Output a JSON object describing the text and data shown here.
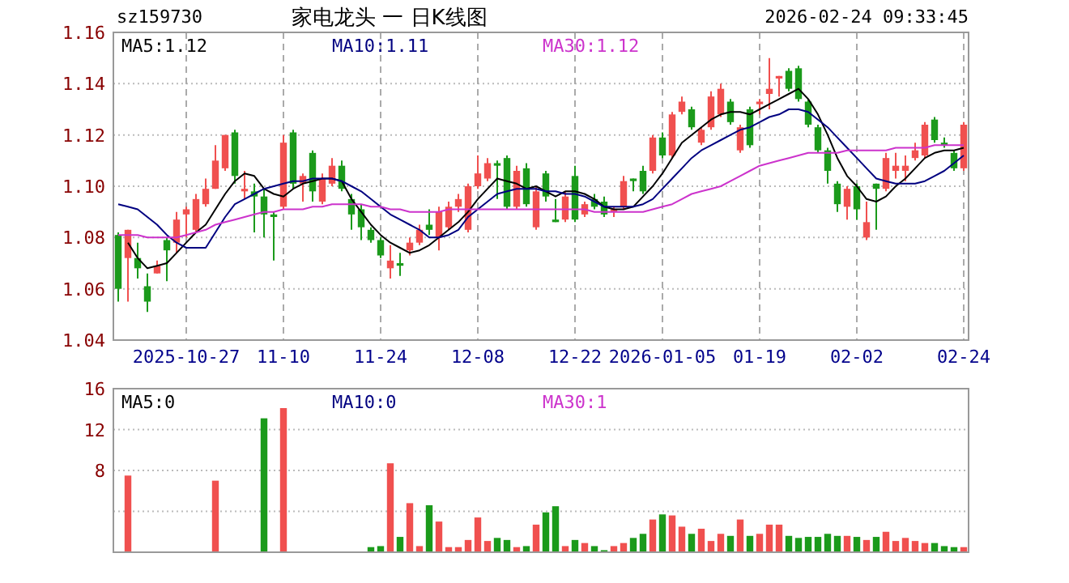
{
  "chart_data": [
    {
      "type": "candlestick",
      "title": "家电龙头 一 日K线图",
      "subtitle": "sz159730",
      "annotations": [
        "2026-02-24 09:33:45"
      ],
      "categories": [
        null,
        null,
        null,
        null,
        null,
        null,
        null,
        "2025-10-27",
        null,
        null,
        null,
        null,
        null,
        null,
        null,
        null,
        null,
        "11-10",
        null,
        null,
        null,
        null,
        null,
        null,
        null,
        null,
        null,
        "11-24",
        null,
        null,
        null,
        null,
        null,
        null,
        null,
        null,
        null,
        "12-08",
        null,
        null,
        null,
        null,
        null,
        null,
        null,
        null,
        null,
        "12-22",
        null,
        null,
        null,
        null,
        null,
        null,
        null,
        null,
        "2026-01-05",
        null,
        null,
        null,
        null,
        null,
        null,
        null,
        null,
        null,
        "01-19",
        null,
        null,
        null,
        null,
        null,
        null,
        null,
        null,
        null,
        "02-02",
        null,
        null,
        null,
        null,
        null,
        null,
        null,
        null,
        null,
        null,
        "02-24"
      ],
      "ohlc": [
        [
          1.081,
          1.082,
          1.055,
          1.06
        ],
        [
          1.072,
          1.083,
          1.055,
          1.083
        ],
        [
          1.072,
          1.078,
          1.064,
          1.068
        ],
        [
          1.061,
          1.066,
          1.051,
          1.055
        ],
        [
          1.066,
          1.071,
          1.066,
          1.069
        ],
        [
          1.079,
          1.08,
          1.063,
          1.075
        ],
        [
          1.078,
          1.09,
          1.074,
          1.087
        ],
        [
          1.089,
          1.092,
          1.08,
          1.091
        ],
        [
          1.083,
          1.097,
          1.082,
          1.095
        ],
        [
          1.093,
          1.103,
          1.092,
          1.099
        ],
        [
          1.099,
          1.116,
          1.099,
          1.11
        ],
        [
          1.107,
          1.12,
          1.106,
          1.12
        ],
        [
          1.121,
          1.122,
          1.101,
          1.104
        ],
        [
          1.098,
          1.106,
          1.095,
          1.099
        ],
        [
          1.098,
          1.101,
          1.082,
          1.096
        ],
        [
          1.096,
          1.099,
          1.08,
          1.089
        ],
        [
          1.089,
          1.09,
          1.071,
          1.088
        ],
        [
          1.092,
          1.12,
          1.091,
          1.117
        ],
        [
          1.121,
          1.122,
          1.099,
          1.101
        ],
        [
          1.101,
          1.105,
          1.094,
          1.104
        ],
        [
          1.113,
          1.114,
          1.094,
          1.098
        ],
        [
          1.094,
          1.105,
          1.093,
          1.103
        ],
        [
          1.101,
          1.111,
          1.1,
          1.108
        ],
        [
          1.108,
          1.11,
          1.098,
          1.099
        ],
        [
          1.095,
          1.097,
          1.083,
          1.089
        ],
        [
          1.091,
          1.093,
          1.079,
          1.084
        ],
        [
          1.083,
          1.084,
          1.078,
          1.079
        ],
        [
          1.079,
          1.08,
          1.072,
          1.073
        ],
        [
          1.068,
          1.077,
          1.064,
          1.071
        ],
        [
          1.07,
          1.074,
          1.065,
          1.069
        ],
        [
          1.075,
          1.08,
          1.073,
          1.078
        ],
        [
          1.078,
          1.085,
          1.077,
          1.083
        ],
        [
          1.085,
          1.091,
          1.081,
          1.083
        ],
        [
          1.08,
          1.092,
          1.075,
          1.09
        ],
        [
          1.084,
          1.094,
          1.083,
          1.092
        ],
        [
          1.092,
          1.097,
          1.09,
          1.095
        ],
        [
          1.083,
          1.101,
          1.082,
          1.1
        ],
        [
          1.1,
          1.112,
          1.099,
          1.105
        ],
        [
          1.103,
          1.111,
          1.102,
          1.109
        ],
        [
          1.109,
          1.11,
          1.095,
          1.108
        ],
        [
          1.111,
          1.112,
          1.091,
          1.092
        ],
        [
          1.092,
          1.108,
          1.091,
          1.106
        ],
        [
          1.107,
          1.109,
          1.092,
          1.093
        ],
        [
          1.084,
          1.1,
          1.083,
          1.098
        ],
        [
          1.105,
          1.106,
          1.094,
          1.096
        ],
        [
          1.087,
          1.095,
          1.086,
          1.086
        ],
        [
          1.087,
          1.098,
          1.086,
          1.096
        ],
        [
          1.104,
          1.108,
          1.086,
          1.087
        ],
        [
          1.089,
          1.094,
          1.088,
          1.093
        ],
        [
          1.095,
          1.097,
          1.091,
          1.092
        ],
        [
          1.094,
          1.096,
          1.088,
          1.089
        ],
        [
          1.09,
          1.092,
          1.088,
          1.091
        ],
        [
          1.092,
          1.104,
          1.091,
          1.102
        ],
        [
          1.103,
          1.103,
          1.098,
          1.102
        ],
        [
          1.106,
          1.108,
          1.097,
          1.098
        ],
        [
          1.106,
          1.12,
          1.105,
          1.119
        ],
        [
          1.119,
          1.121,
          1.111,
          1.112
        ],
        [
          1.112,
          1.129,
          1.111,
          1.128
        ],
        [
          1.129,
          1.135,
          1.128,
          1.133
        ],
        [
          1.13,
          1.131,
          1.122,
          1.123
        ],
        [
          1.117,
          1.123,
          1.116,
          1.122
        ],
        [
          1.123,
          1.137,
          1.122,
          1.135
        ],
        [
          1.128,
          1.14,
          1.127,
          1.138
        ],
        [
          1.133,
          1.134,
          1.124,
          1.125
        ],
        [
          1.114,
          1.124,
          1.113,
          1.123
        ],
        [
          1.13,
          1.131,
          1.115,
          1.116
        ],
        [
          1.132,
          1.134,
          1.128,
          1.133
        ],
        [
          1.136,
          1.15,
          1.13,
          1.138
        ],
        [
          1.142,
          1.143,
          1.135,
          1.143
        ],
        [
          1.145,
          1.146,
          1.137,
          1.138
        ],
        [
          1.146,
          1.147,
          1.133,
          1.134
        ],
        [
          1.133,
          1.134,
          1.123,
          1.124
        ],
        [
          1.123,
          1.124,
          1.113,
          1.114
        ],
        [
          1.114,
          1.115,
          1.101,
          1.106
        ],
        [
          1.101,
          1.102,
          1.09,
          1.093
        ],
        [
          1.092,
          1.1,
          1.087,
          1.099
        ],
        [
          1.1,
          1.101,
          1.087,
          1.091
        ],
        [
          1.08,
          1.094,
          1.079,
          1.086
        ],
        [
          1.101,
          1.101,
          1.083,
          1.099
        ],
        [
          1.099,
          1.113,
          1.098,
          1.111
        ],
        [
          1.106,
          1.113,
          1.103,
          1.108
        ],
        [
          1.106,
          1.112,
          1.102,
          1.108
        ],
        [
          1.111,
          1.117,
          1.11,
          1.114
        ],
        [
          1.112,
          1.125,
          1.111,
          1.124
        ],
        [
          1.126,
          1.127,
          1.117,
          1.118
        ],
        [
          1.117,
          1.119,
          1.115,
          1.116
        ],
        [
          1.113,
          1.114,
          1.106,
          1.107
        ],
        [
          1.107,
          1.125,
          1.106,
          1.124
        ]
      ],
      "colors": [
        "#1b9a1b",
        "#f0504f",
        "#1b9a1b",
        "#1b9a1b",
        "#f0504f",
        "#1b9a1b",
        "#f0504f",
        "#f0504f",
        "#f0504f",
        "#f0504f",
        "#f0504f",
        "#f0504f",
        "#1b9a1b",
        "#f0504f",
        "#1b9a1b",
        "#1b9a1b",
        "#1b9a1b",
        "#f0504f",
        "#1b9a1b",
        "#f0504f",
        "#1b9a1b",
        "#f0504f",
        "#f0504f",
        "#1b9a1b",
        "#1b9a1b",
        "#1b9a1b",
        "#1b9a1b",
        "#1b9a1b",
        "#f0504f",
        "#1b9a1b",
        "#f0504f",
        "#f0504f",
        "#1b9a1b",
        "#f0504f",
        "#f0504f",
        "#f0504f",
        "#f0504f",
        "#f0504f",
        "#f0504f",
        "#1b9a1b",
        "#1b9a1b",
        "#f0504f",
        "#1b9a1b",
        "#f0504f",
        "#1b9a1b",
        "#1b9a1b",
        "#f0504f",
        "#1b9a1b",
        "#f0504f",
        "#1b9a1b",
        "#1b9a1b",
        "#f0504f",
        "#f0504f",
        "#1b9a1b",
        "#1b9a1b",
        "#f0504f",
        "#1b9a1b",
        "#f0504f",
        "#f0504f",
        "#1b9a1b",
        "#f0504f",
        "#f0504f",
        "#f0504f",
        "#1b9a1b",
        "#f0504f",
        "#1b9a1b",
        "#f0504f",
        "#f0504f",
        "#f0504f",
        "#1b9a1b",
        "#1b9a1b",
        "#1b9a1b",
        "#1b9a1b",
        "#1b9a1b",
        "#1b9a1b",
        "#f0504f",
        "#1b9a1b",
        "#f0504f",
        "#1b9a1b",
        "#f0504f",
        "#f0504f",
        "#f0504f",
        "#f0504f",
        "#f0504f",
        "#1b9a1b",
        "#1b9a1b",
        "#1b9a1b",
        "#f0504f"
      ],
      "series": [
        {
          "type": "line",
          "name": "MA5:1.12",
          "color": "#000000",
          "values": [
            null,
            1.078,
            1.072,
            1.068,
            1.069,
            1.07,
            1.074,
            1.078,
            1.082,
            1.085,
            1.091,
            1.097,
            1.102,
            1.105,
            1.104,
            1.099,
            1.097,
            1.096,
            1.099,
            1.101,
            1.102,
            1.103,
            1.103,
            1.102,
            1.095,
            1.09,
            1.085,
            1.081,
            1.078,
            1.076,
            1.074,
            1.075,
            1.077,
            1.08,
            1.083,
            1.086,
            1.09,
            1.095,
            1.099,
            1.103,
            1.102,
            1.101,
            1.099,
            1.1,
            1.098,
            1.096,
            1.098,
            1.098,
            1.097,
            1.095,
            1.092,
            1.091,
            1.091,
            1.092,
            1.096,
            1.1,
            1.105,
            1.111,
            1.117,
            1.12,
            1.123,
            1.126,
            1.128,
            1.129,
            1.129,
            1.128,
            1.13,
            1.132,
            1.134,
            1.136,
            1.138,
            1.134,
            1.128,
            1.12,
            1.111,
            1.104,
            1.1,
            1.095,
            1.094,
            1.096,
            1.1,
            1.103,
            1.107,
            1.111,
            1.113,
            1.114,
            1.114,
            1.115
          ]
        },
        {
          "type": "line",
          "name": "MA10:1.11",
          "color": "#000080",
          "values": [
            1.093,
            1.092,
            1.091,
            1.088,
            1.085,
            1.081,
            1.078,
            1.076,
            1.076,
            1.076,
            1.082,
            1.088,
            1.093,
            1.095,
            1.097,
            1.099,
            1.1,
            1.101,
            1.102,
            1.102,
            1.103,
            1.103,
            1.103,
            1.102,
            1.1,
            1.098,
            1.095,
            1.092,
            1.089,
            1.087,
            1.085,
            1.083,
            1.08,
            1.08,
            1.081,
            1.083,
            1.088,
            1.091,
            1.094,
            1.097,
            1.098,
            1.099,
            1.099,
            1.099,
            1.098,
            1.098,
            1.097,
            1.097,
            1.096,
            1.094,
            1.092,
            1.092,
            1.092,
            1.092,
            1.093,
            1.095,
            1.099,
            1.103,
            1.107,
            1.111,
            1.114,
            1.116,
            1.118,
            1.12,
            1.122,
            1.123,
            1.125,
            1.127,
            1.128,
            1.13,
            1.13,
            1.129,
            1.126,
            1.123,
            1.119,
            1.115,
            1.111,
            1.107,
            1.103,
            1.102,
            1.101,
            1.101,
            1.101,
            1.102,
            1.104,
            1.106,
            1.109,
            1.112
          ]
        },
        {
          "type": "line",
          "name": "MA30:1.12",
          "color": "#cc33cc",
          "values": [
            1.081,
            1.081,
            1.081,
            1.08,
            1.08,
            1.08,
            1.08,
            1.081,
            1.082,
            1.083,
            1.085,
            1.086,
            1.087,
            1.088,
            1.089,
            1.09,
            1.09,
            1.091,
            1.091,
            1.091,
            1.092,
            1.092,
            1.093,
            1.093,
            1.093,
            1.093,
            1.092,
            1.092,
            1.091,
            1.091,
            1.09,
            1.09,
            1.09,
            1.09,
            1.091,
            1.091,
            1.091,
            1.091,
            1.091,
            1.091,
            1.091,
            1.091,
            1.091,
            1.091,
            1.091,
            1.091,
            1.091,
            1.091,
            1.091,
            1.09,
            1.09,
            1.09,
            1.09,
            1.09,
            1.09,
            1.091,
            1.092,
            1.093,
            1.095,
            1.097,
            1.098,
            1.099,
            1.1,
            1.102,
            1.104,
            1.106,
            1.108,
            1.109,
            1.11,
            1.111,
            1.112,
            1.113,
            1.113,
            1.113,
            1.113,
            1.114,
            1.114,
            1.114,
            1.114,
            1.114,
            1.115,
            1.115,
            1.115,
            1.115,
            1.116,
            1.116,
            1.116,
            1.116
          ]
        }
      ],
      "ylim": [
        1.04,
        1.16
      ],
      "yticks": [
        {
          "value": 1.04,
          "label": "1.04"
        },
        {
          "value": 1.06,
          "label": "1.06"
        },
        {
          "value": 1.08,
          "label": "1.08"
        },
        {
          "value": 1.1,
          "label": "1.10"
        },
        {
          "value": 1.12,
          "label": "1.12"
        },
        {
          "value": 1.14,
          "label": "1.14"
        },
        {
          "value": 1.16,
          "label": "1.16"
        }
      ],
      "grid": true,
      "legend": "top left"
    },
    {
      "type": "bar",
      "annotations": [
        "MA5:0",
        "MA10:0",
        "MA30:1"
      ],
      "tick_labels": "y",
      "categories": [
        null,
        null,
        null,
        null,
        null,
        null,
        null,
        null,
        null,
        null,
        null,
        null,
        null,
        null,
        null,
        null,
        null,
        null,
        null,
        null,
        null,
        null,
        null,
        null,
        null,
        null,
        null,
        null,
        null,
        null,
        null,
        null,
        null,
        null,
        null,
        null,
        null,
        null,
        null,
        null,
        null,
        null,
        null,
        null,
        null,
        null,
        null,
        null,
        null,
        null,
        null,
        null,
        null,
        null,
        null,
        null,
        null,
        null,
        null,
        null,
        null,
        null,
        null,
        null,
        null,
        null,
        null,
        null,
        null,
        null,
        null,
        null,
        null,
        null,
        null,
        null,
        null,
        null,
        null,
        null,
        null,
        null,
        null,
        null,
        null,
        null,
        null,
        null
      ],
      "values": [
        null,
        7.5,
        null,
        null,
        null,
        null,
        null,
        null,
        null,
        null,
        7,
        null,
        null,
        null,
        null,
        13.1,
        null,
        14.1,
        null,
        null,
        null,
        null,
        null,
        null,
        null,
        null,
        0.5,
        0.6,
        8.7,
        1.5,
        4.8,
        0.6,
        4.6,
        3.0,
        0.5,
        0.5,
        1.2,
        3.4,
        1.1,
        1.4,
        1.2,
        0.5,
        0.6,
        2.7,
        3.9,
        4.5,
        0.6,
        1.2,
        0.9,
        0.6,
        0.2,
        0.6,
        0.9,
        1.4,
        1.8,
        3.2,
        3.7,
        3.6,
        2.5,
        1.8,
        2.3,
        1.1,
        1.8,
        1.6,
        3.2,
        1.6,
        1.8,
        2.7,
        2.7,
        1.6,
        1.4,
        1.5,
        1.5,
        1.8,
        1.6,
        1.6,
        1.5,
        1.2,
        1.5,
        2.0,
        1.1,
        1.4,
        1.1,
        0.9,
        0.9,
        0.6,
        0.5,
        0.5
      ],
      "colors": [
        "#1b9a1b",
        "#f0504f",
        "#1b9a1b",
        "#1b9a1b",
        "#f0504f",
        "#1b9a1b",
        "#f0504f",
        "#f0504f",
        "#f0504f",
        "#f0504f",
        "#f0504f",
        "#f0504f",
        "#1b9a1b",
        "#f0504f",
        "#1b9a1b",
        "#1b9a1b",
        "#1b9a1b",
        "#f0504f",
        "#1b9a1b",
        "#f0504f",
        "#1b9a1b",
        "#f0504f",
        "#f0504f",
        "#1b9a1b",
        "#1b9a1b",
        "#1b9a1b",
        "#1b9a1b",
        "#1b9a1b",
        "#f0504f",
        "#1b9a1b",
        "#f0504f",
        "#f0504f",
        "#1b9a1b",
        "#f0504f",
        "#f0504f",
        "#f0504f",
        "#f0504f",
        "#f0504f",
        "#f0504f",
        "#1b9a1b",
        "#1b9a1b",
        "#f0504f",
        "#1b9a1b",
        "#f0504f",
        "#1b9a1b",
        "#1b9a1b",
        "#f0504f",
        "#1b9a1b",
        "#f0504f",
        "#1b9a1b",
        "#1b9a1b",
        "#f0504f",
        "#f0504f",
        "#1b9a1b",
        "#1b9a1b",
        "#f0504f",
        "#1b9a1b",
        "#f0504f",
        "#f0504f",
        "#1b9a1b",
        "#f0504f",
        "#f0504f",
        "#f0504f",
        "#1b9a1b",
        "#f0504f",
        "#1b9a1b",
        "#f0504f",
        "#f0504f",
        "#f0504f",
        "#1b9a1b",
        "#1b9a1b",
        "#1b9a1b",
        "#1b9a1b",
        "#1b9a1b",
        "#1b9a1b",
        "#f0504f",
        "#1b9a1b",
        "#f0504f",
        "#1b9a1b",
        "#f0504f",
        "#f0504f",
        "#f0504f",
        "#f0504f",
        "#f0504f",
        "#1b9a1b",
        "#1b9a1b",
        "#1b9a1b",
        "#f0504f"
      ],
      "ylim": [
        0,
        16
      ],
      "yticks": [
        {
          "value": 4,
          "label": null
        },
        8,
        12,
        16
      ],
      "grid": "y"
    }
  ]
}
